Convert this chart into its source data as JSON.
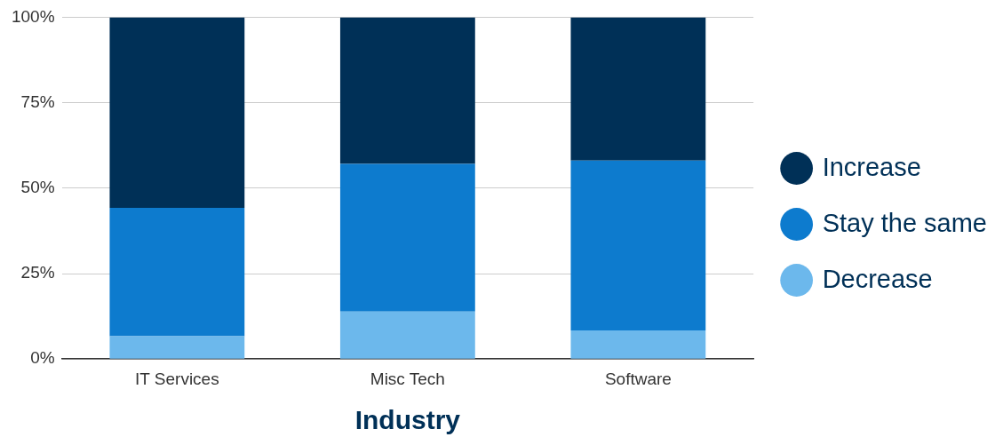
{
  "chart_data": {
    "type": "bar",
    "stacked": true,
    "xlabel": "Industry",
    "categories": [
      "IT Services",
      "Misc Tech",
      "Software"
    ],
    "series": [
      {
        "name": "Decrease",
        "color": "#6cb8ec",
        "values": [
          6.7,
          13.9,
          8.4
        ]
      },
      {
        "name": "Stay the same",
        "color": "#0d7bce",
        "values": [
          37.5,
          43.2,
          49.7
        ]
      },
      {
        "name": "Increase",
        "color": "#003057",
        "values": [
          55.8,
          42.9,
          41.9
        ]
      }
    ],
    "ylim": [
      0,
      100
    ],
    "yticks": [
      {
        "value": 0,
        "label": "0%"
      },
      {
        "value": 25,
        "label": "25%"
      },
      {
        "value": 50,
        "label": "50%"
      },
      {
        "value": 75,
        "label": "75%"
      },
      {
        "value": 100,
        "label": "100%"
      }
    ],
    "grid": "y",
    "legend": "right"
  }
}
